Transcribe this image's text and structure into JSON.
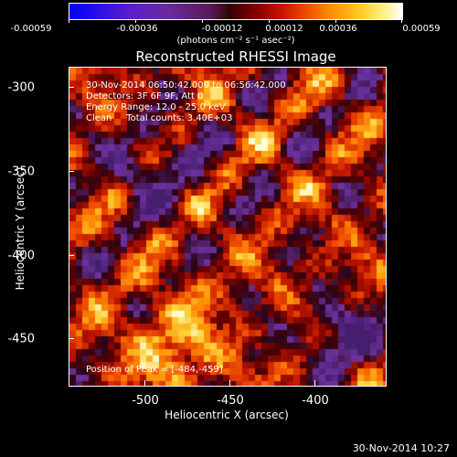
{
  "colorbar": {
    "tick_labels": [
      "-0.00059",
      "-0.00036",
      "-0.00012",
      "0.00012",
      "0.00036",
      "0.00059"
    ],
    "units": "(photons cm⁻² s⁻¹ asec⁻²)",
    "colors": [
      "#0000ff",
      "#6a2a9a",
      "#300606",
      "#8e0000",
      "#f04a00",
      "#ffc21a",
      "#ffffff"
    ]
  },
  "title": "Reconstructed RHESSI Image",
  "info": {
    "time_range": "30-Nov-2014 06:50:42.000 to 06:56:42.000",
    "detectors": "Detectors: 3F 6F 9F, Att 0",
    "energy": "Energy Range: 12.0 - 25.0 keV",
    "clean": "Clean     Total counts: 3.40E+03",
    "peak": "Position of Peak = [-484,-459]"
  },
  "axes": {
    "xlabel": "Heliocentric X (arcsec)",
    "ylabel": "Heliocentric Y (arcsec)",
    "x_ticks": [
      "-500",
      "-450",
      "-400"
    ],
    "y_ticks": [
      "-300",
      "-350",
      "-400",
      "-450"
    ],
    "xlim": [
      -545,
      -370
    ],
    "ylim": [
      -483,
      -292
    ]
  },
  "timestamp": "30-Nov-2014 10:27"
}
